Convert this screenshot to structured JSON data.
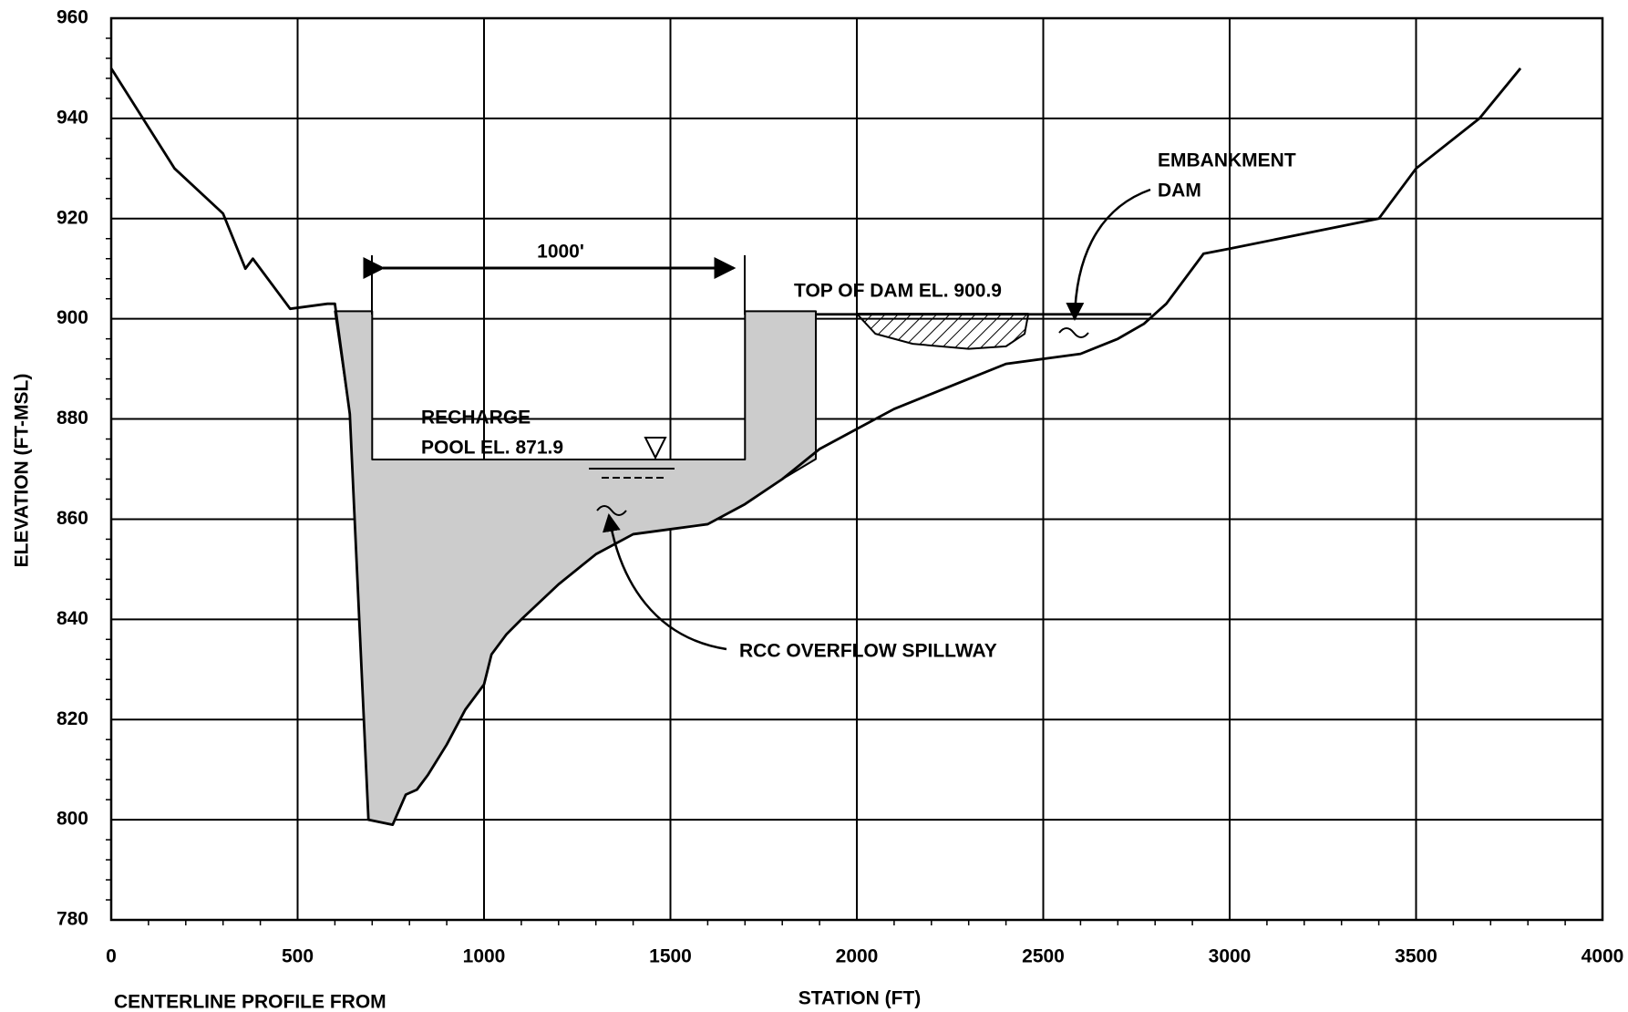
{
  "chart_data": {
    "type": "line",
    "xlabel": "STATION (FT)",
    "ylabel": "ELEVATION (FT-MSL)",
    "xlim": [
      0,
      4000
    ],
    "ylim": [
      780,
      960
    ],
    "xticks": [
      0,
      500,
      1000,
      1500,
      2000,
      2500,
      3000,
      3500,
      4000
    ],
    "yticks": [
      780,
      800,
      820,
      840,
      860,
      880,
      900,
      920,
      940,
      960
    ],
    "grid": true,
    "series": [
      {
        "color": "#000000",
        "fill": "#cccccc",
        "x": [
          600,
          700,
          700,
          1700,
          1700,
          1890,
          1890,
          1800,
          1700,
          1600,
          1500,
          1400,
          1300,
          1200,
          1100,
          1060,
          1020,
          1000,
          950,
          900,
          850,
          820,
          790,
          755,
          690,
          640,
          600
        ],
        "values": [
          901.5,
          901.5,
          871.9,
          871.9,
          901.5,
          901.5,
          872,
          868,
          863,
          859,
          858,
          857,
          853,
          847,
          840,
          837,
          833,
          827,
          822,
          815,
          809,
          806,
          805,
          799,
          800,
          881,
          901.5
        ]
      },
      {
        "color": "#000000",
        "fill": "hatch",
        "x": [
          2000,
          2050,
          2150,
          2300,
          2400,
          2450,
          2460,
          2000
        ],
        "values": [
          901,
          897,
          895,
          894,
          894.5,
          897,
          901,
          901
        ]
      },
      {
        "color": "#000000",
        "x": [
          1890,
          2790
        ],
        "values": [
          900.9,
          900.9
        ]
      },
      {
        "color": "#000000",
        "x": [
          0,
          170,
          300,
          360,
          380,
          480,
          580,
          600,
          640,
          690,
          755,
          790,
          820,
          850,
          900,
          950,
          1000,
          1020,
          1060,
          1100,
          1200,
          1300,
          1400,
          1500,
          1600,
          1700,
          1800,
          1900,
          2000,
          2100,
          2200,
          2300,
          2400,
          2500,
          2600,
          2700,
          2770,
          2830,
          2930,
          3000,
          3200,
          3400,
          3500,
          3670,
          3780
        ],
        "values": [
          950,
          930,
          921,
          910,
          912,
          902,
          903,
          903,
          881,
          800,
          799,
          805,
          806,
          809,
          815,
          822,
          827,
          833,
          837,
          840,
          847,
          853,
          857,
          858,
          859,
          863,
          868,
          874,
          878,
          882,
          885,
          888,
          891,
          892,
          893,
          896,
          899,
          903,
          913,
          914,
          917,
          920,
          930,
          940,
          950
        ]
      }
    ],
    "annotations": [
      "1000'",
      "TOP OF DAM EL. 900.9",
      "EMBANKMENT",
      "DAM",
      "RECHARGE",
      "POOL EL. 871.9",
      "RCC OVERFLOW SPILLWAY",
      "CENTERLINE PROFILE FROM"
    ]
  }
}
